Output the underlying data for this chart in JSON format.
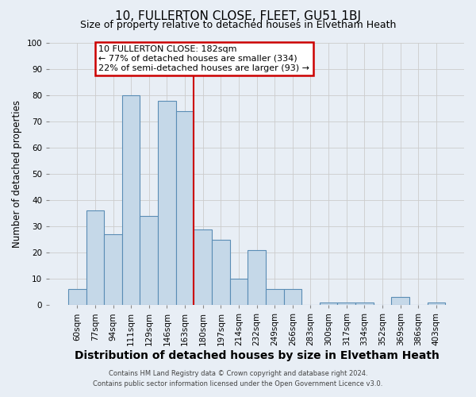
{
  "title": "10, FULLERTON CLOSE, FLEET, GU51 1BJ",
  "subtitle": "Size of property relative to detached houses in Elvetham Heath",
  "xlabel": "Distribution of detached houses by size in Elvetham Heath",
  "ylabel": "Number of detached properties",
  "bar_labels": [
    "60sqm",
    "77sqm",
    "94sqm",
    "111sqm",
    "129sqm",
    "146sqm",
    "163sqm",
    "180sqm",
    "197sqm",
    "214sqm",
    "232sqm",
    "249sqm",
    "266sqm",
    "283sqm",
    "300sqm",
    "317sqm",
    "334sqm",
    "352sqm",
    "369sqm",
    "386sqm",
    "403sqm"
  ],
  "bar_values": [
    6,
    36,
    27,
    80,
    34,
    78,
    74,
    29,
    25,
    10,
    21,
    6,
    6,
    0,
    1,
    1,
    1,
    0,
    3,
    0,
    1
  ],
  "bar_color": "#c5d8e8",
  "bar_edge_color": "#5a8db5",
  "vline_color": "#cc0000",
  "vline_index": 7,
  "annotation_title": "10 FULLERTON CLOSE: 182sqm",
  "annotation_line1": "← 77% of detached houses are smaller (334)",
  "annotation_line2": "22% of semi-detached houses are larger (93) →",
  "annotation_box_color": "#cc0000",
  "annotation_bg": "#ffffff",
  "ylim": [
    0,
    100
  ],
  "yticks": [
    0,
    10,
    20,
    30,
    40,
    50,
    60,
    70,
    80,
    90,
    100
  ],
  "grid_color": "#cccccc",
  "bg_color": "#e8eef5",
  "footer1": "Contains HM Land Registry data © Crown copyright and database right 2024.",
  "footer2": "Contains public sector information licensed under the Open Government Licence v3.0.",
  "title_fontsize": 11,
  "subtitle_fontsize": 9,
  "xlabel_fontsize": 10,
  "ylabel_fontsize": 8.5,
  "tick_fontsize": 7.5,
  "ann_fontsize": 8
}
